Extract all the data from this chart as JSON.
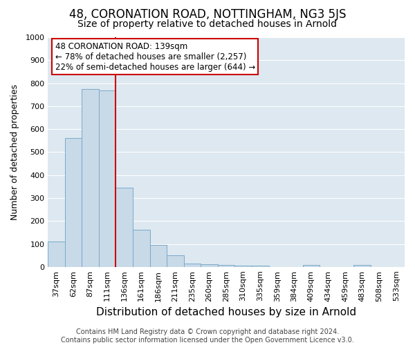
{
  "title": "48, CORONATION ROAD, NOTTINGHAM, NG3 5JS",
  "subtitle": "Size of property relative to detached houses in Arnold",
  "xlabel": "Distribution of detached houses by size in Arnold",
  "ylabel": "Number of detached properties",
  "categories": [
    "37sqm",
    "62sqm",
    "87sqm",
    "111sqm",
    "136sqm",
    "161sqm",
    "186sqm",
    "211sqm",
    "235sqm",
    "260sqm",
    "285sqm",
    "310sqm",
    "335sqm",
    "359sqm",
    "384sqm",
    "409sqm",
    "434sqm",
    "459sqm",
    "483sqm",
    "508sqm",
    "533sqm"
  ],
  "values": [
    110,
    560,
    775,
    770,
    345,
    163,
    97,
    50,
    15,
    12,
    8,
    6,
    6,
    0,
    0,
    8,
    0,
    0,
    8,
    0,
    0
  ],
  "bar_color": "#c8d9e8",
  "bar_edge_color": "#7aaac8",
  "ylim": [
    0,
    1000
  ],
  "yticks": [
    0,
    100,
    200,
    300,
    400,
    500,
    600,
    700,
    800,
    900,
    1000
  ],
  "property_line_index": 4,
  "property_line_color": "#cc0000",
  "annotation_title": "48 CORONATION ROAD: 139sqm",
  "annotation_line1": "← 78% of detached houses are smaller (2,257)",
  "annotation_line2": "22% of semi-detached houses are larger (644) →",
  "annotation_box_color": "#ffffff",
  "annotation_box_edge_color": "#cc0000",
  "fig_bg_color": "#ffffff",
  "plot_bg_color": "#dde8f0",
  "grid_color": "#ffffff",
  "title_fontsize": 12,
  "subtitle_fontsize": 10,
  "xlabel_fontsize": 11,
  "ylabel_fontsize": 9,
  "tick_fontsize": 8,
  "annotation_fontsize": 8.5,
  "footer_fontsize": 7,
  "footer": "Contains HM Land Registry data © Crown copyright and database right 2024.\nContains public sector information licensed under the Open Government Licence v3.0."
}
